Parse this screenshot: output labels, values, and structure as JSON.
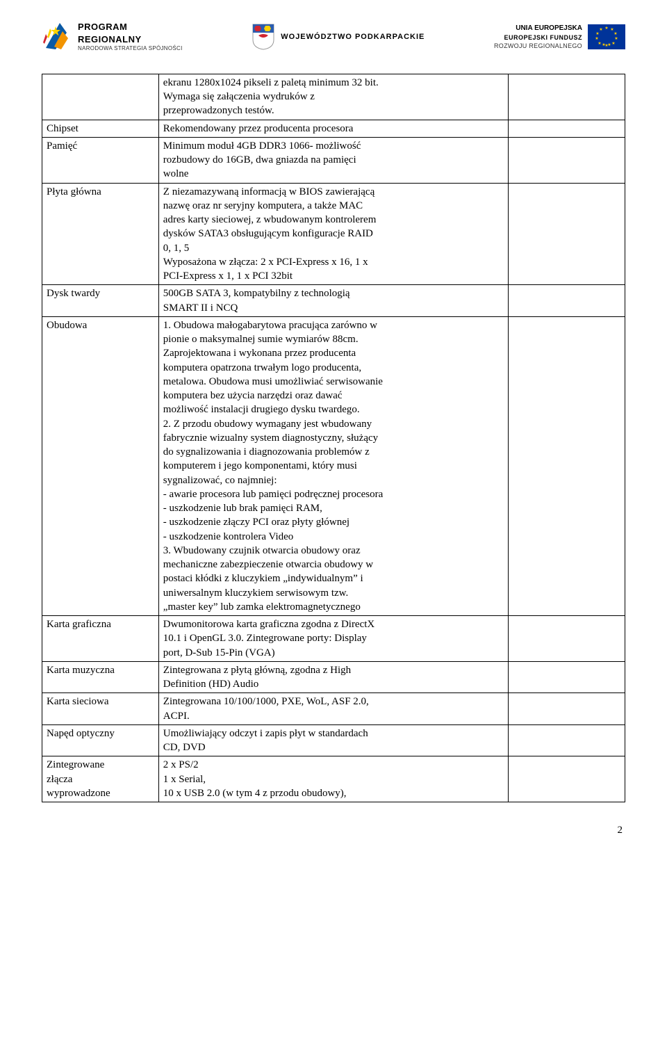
{
  "header": {
    "left": {
      "line1": "PROGRAM",
      "line2": "REGIONALNY",
      "sub": "NARODOWA STRATEGIA SPÓJNOŚCI"
    },
    "center": {
      "line1": "WOJEWÓDZTWO PODKARPACKIE"
    },
    "right": {
      "line0": "UNIA EUROPEJSKA",
      "line1": "EUROPEJSKI FUNDUSZ",
      "line2": "ROZWOJU REGIONALNEGO"
    }
  },
  "rows": [
    {
      "label": "",
      "desc": "ekranu 1280x1024 pikseli z paletą minimum 32 bit.\nWymaga się załączenia wydruków z\nprzeprowadzonych testów."
    },
    {
      "label": "Chipset",
      "desc": "Rekomendowany przez producenta procesora"
    },
    {
      "label": "Pamięć",
      "desc": "Minimum moduł 4GB DDR3 1066- możliwość\nrozbudowy do 16GB, dwa gniazda na pamięci\nwolne"
    },
    {
      "label": "Płyta główna",
      "desc": "Z niezamazywaną informacją w BIOS zawierającą\nnazwę oraz nr seryjny komputera, a także MAC\nadres karty sieciowej, z wbudowanym kontrolerem\ndysków SATA3 obsługującym konfiguracje RAID\n0, 1, 5\nWyposażona w złącza: 2 x PCI-Express x 16, 1 x\nPCI-Express x 1, 1 x PCI 32bit"
    },
    {
      "label": "Dysk twardy",
      "desc": "500GB SATA 3, kompatybilny z technologią\nSMART II i NCQ"
    },
    {
      "label": "Obudowa",
      "desc": "1. Obudowa małogabarytowa pracująca zarówno w\npionie o maksymalnej sumie wymiarów 88cm.\nZaprojektowana i wykonana przez producenta\nkomputera opatrzona trwałym logo producenta,\nmetalowa. Obudowa musi umożliwiać serwisowanie\nkomputera bez użycia narzędzi oraz dawać\nmożliwość instalacji drugiego dysku twardego.\n2. Z przodu obudowy wymagany jest wbudowany\nfabrycznie wizualny system diagnostyczny, służący\ndo sygnalizowania i diagnozowania problemów z\nkomputerem i jego komponentami, który musi\nsygnalizować, co najmniej:\n- awarie procesora lub pamięci podręcznej procesora\n- uszkodzenie lub brak pamięci RAM,\n- uszkodzenie złączy PCI oraz płyty głównej\n- uszkodzenie kontrolera Video\n3. Wbudowany czujnik otwarcia obudowy oraz\nmechaniczne zabezpieczenie otwarcia obudowy w\npostaci kłódki z kluczykiem „indywidualnym” i\nuniwersalnym kluczykiem serwisowym tzw.\n„master key” lub zamka elektromagnetycznego"
    },
    {
      "label": "Karta graficzna",
      "desc": "Dwumonitorowa karta graficzna zgodna z DirectX\n10.1 i OpenGL 3.0. Zintegrowane porty: Display\nport, D-Sub 15-Pin (VGA)"
    },
    {
      "label": "Karta muzyczna",
      "desc": "Zintegrowana z płytą główną, zgodna z High\nDefinition (HD) Audio"
    },
    {
      "label": "Karta sieciowa",
      "desc": "Zintegrowana 10/100/1000, PXE, WoL, ASF 2.0,\nACPI."
    },
    {
      "label": "Napęd optyczny",
      "desc": "Umożliwiający odczyt i zapis płyt w standardach\nCD, DVD"
    },
    {
      "label": "Zintegrowane\nzłącza\nwyprowadzone",
      "desc": "2 x PS/2\n1 x Serial,\n10 x USB 2.0 (w tym 4 z przodu obudowy),"
    }
  ],
  "page_number": "2",
  "colors": {
    "eu_blue": "#003399",
    "eu_yellow": "#ffcc00",
    "arrow_blue": "#0b5aa5",
    "arrow_orange": "#f29400",
    "star_yellow": "#ffd200",
    "shield_red": "#d22630",
    "shield_blue": "#2a5db0"
  }
}
